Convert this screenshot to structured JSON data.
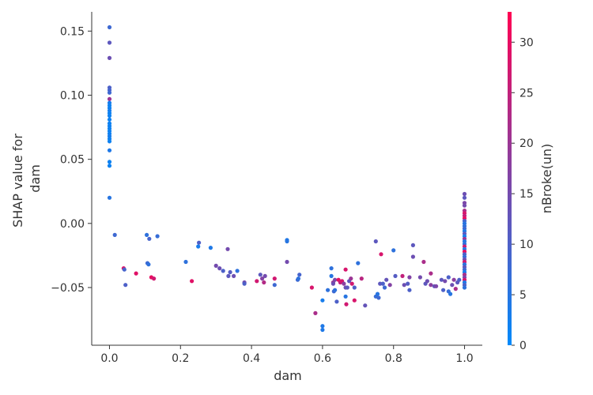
{
  "chart_data": {
    "type": "scatter",
    "title": "",
    "xlabel": "dam",
    "ylabel_lines": [
      "SHAP value for",
      "dam"
    ],
    "xlim": [
      -0.05,
      1.05
    ],
    "ylim": [
      -0.095,
      0.165
    ],
    "xticks": [
      0.0,
      0.2,
      0.4,
      0.6,
      0.8,
      1.0
    ],
    "xtick_labels": [
      "0.0",
      "0.2",
      "0.4",
      "0.6",
      "0.8",
      "1.0"
    ],
    "yticks": [
      0.15,
      0.1,
      0.05,
      0.0,
      -0.05
    ],
    "ytick_labels": [
      "0.15",
      "0.10",
      "0.05",
      "0.00",
      "−0.05"
    ],
    "grid": false,
    "colorbar": {
      "label": "nBroke(un)",
      "range": [
        0,
        33
      ],
      "ticks": [
        0,
        5,
        10,
        15,
        20,
        25,
        30
      ],
      "tick_labels": [
        "0",
        "5",
        "10",
        "15",
        "20",
        "25",
        "30"
      ],
      "colors": [
        "#008afb",
        "#ff0052"
      ]
    },
    "points": [
      [
        0.0,
        0.153,
        8
      ],
      [
        0.0,
        0.141,
        12
      ],
      [
        0.0,
        0.129,
        14
      ],
      [
        0.0,
        0.106,
        10
      ],
      [
        0.0,
        0.104,
        9
      ],
      [
        0.0,
        0.102,
        8
      ],
      [
        0.0,
        0.097,
        20
      ],
      [
        0.0,
        0.094,
        3
      ],
      [
        0.0,
        0.092,
        2
      ],
      [
        0.0,
        0.09,
        2
      ],
      [
        0.0,
        0.088,
        3
      ],
      [
        0.0,
        0.086,
        2
      ],
      [
        0.0,
        0.084,
        2
      ],
      [
        0.0,
        0.081,
        2
      ],
      [
        0.0,
        0.078,
        2
      ],
      [
        0.0,
        0.076,
        2
      ],
      [
        0.0,
        0.074,
        2
      ],
      [
        0.0,
        0.072,
        2
      ],
      [
        0.0,
        0.07,
        2
      ],
      [
        0.0,
        0.068,
        3
      ],
      [
        0.0,
        0.066,
        2
      ],
      [
        0.0,
        0.064,
        2
      ],
      [
        0.0,
        0.057,
        4
      ],
      [
        0.0,
        0.048,
        2
      ],
      [
        0.0,
        0.045,
        2
      ],
      [
        0.0,
        0.02,
        5
      ],
      [
        0.015,
        -0.009,
        8
      ],
      [
        0.04,
        -0.035,
        28
      ],
      [
        0.042,
        -0.036,
        9
      ],
      [
        0.045,
        -0.048,
        10
      ],
      [
        0.075,
        -0.039,
        29
      ],
      [
        0.105,
        -0.009,
        6
      ],
      [
        0.107,
        -0.031,
        8
      ],
      [
        0.11,
        -0.032,
        6
      ],
      [
        0.112,
        -0.012,
        9
      ],
      [
        0.118,
        -0.042,
        30
      ],
      [
        0.125,
        -0.043,
        27
      ],
      [
        0.135,
        -0.01,
        7
      ],
      [
        0.215,
        -0.03,
        6
      ],
      [
        0.232,
        -0.045,
        29
      ],
      [
        0.25,
        -0.018,
        3
      ],
      [
        0.252,
        -0.015,
        10
      ],
      [
        0.285,
        -0.019,
        4
      ],
      [
        0.3,
        -0.033,
        15
      ],
      [
        0.31,
        -0.035,
        14
      ],
      [
        0.32,
        -0.037,
        10
      ],
      [
        0.333,
        -0.02,
        15
      ],
      [
        0.335,
        -0.041,
        12
      ],
      [
        0.34,
        -0.038,
        11
      ],
      [
        0.35,
        -0.041,
        14
      ],
      [
        0.36,
        -0.037,
        6
      ],
      [
        0.38,
        -0.046,
        15
      ],
      [
        0.38,
        -0.047,
        10
      ],
      [
        0.415,
        -0.045,
        27
      ],
      [
        0.425,
        -0.04,
        12
      ],
      [
        0.43,
        -0.043,
        17
      ],
      [
        0.435,
        -0.046,
        23
      ],
      [
        0.438,
        -0.041,
        15
      ],
      [
        0.465,
        -0.048,
        8
      ],
      [
        0.465,
        -0.043,
        27
      ],
      [
        0.5,
        -0.013,
        4
      ],
      [
        0.5,
        -0.014,
        5
      ],
      [
        0.5,
        -0.03,
        15
      ],
      [
        0.53,
        -0.044,
        8
      ],
      [
        0.532,
        -0.043,
        6
      ],
      [
        0.535,
        -0.04,
        9
      ],
      [
        0.57,
        -0.05,
        28
      ],
      [
        0.58,
        -0.07,
        22
      ],
      [
        0.6,
        -0.06,
        3
      ],
      [
        0.6,
        -0.08,
        4
      ],
      [
        0.6,
        -0.083,
        4
      ],
      [
        0.615,
        -0.052,
        6
      ],
      [
        0.625,
        -0.035,
        6
      ],
      [
        0.625,
        -0.041,
        5
      ],
      [
        0.63,
        -0.046,
        20
      ],
      [
        0.63,
        -0.047,
        14
      ],
      [
        0.632,
        -0.053,
        8
      ],
      [
        0.635,
        -0.044,
        16
      ],
      [
        0.635,
        -0.052,
        6
      ],
      [
        0.64,
        -0.061,
        10
      ],
      [
        0.645,
        -0.044,
        30
      ],
      [
        0.65,
        -0.046,
        25
      ],
      [
        0.655,
        -0.045,
        28
      ],
      [
        0.66,
        -0.047,
        18
      ],
      [
        0.665,
        -0.05,
        14
      ],
      [
        0.665,
        -0.057,
        5
      ],
      [
        0.665,
        -0.036,
        28
      ],
      [
        0.667,
        -0.063,
        27
      ],
      [
        0.67,
        -0.05,
        12
      ],
      [
        0.675,
        -0.045,
        12
      ],
      [
        0.68,
        -0.043,
        20
      ],
      [
        0.683,
        -0.047,
        27
      ],
      [
        0.69,
        -0.06,
        28
      ],
      [
        0.69,
        -0.05,
        10
      ],
      [
        0.7,
        -0.031,
        6
      ],
      [
        0.71,
        -0.043,
        24
      ],
      [
        0.72,
        -0.064,
        13
      ],
      [
        0.75,
        -0.014,
        12
      ],
      [
        0.75,
        -0.057,
        7
      ],
      [
        0.755,
        -0.055,
        5
      ],
      [
        0.758,
        -0.058,
        8
      ],
      [
        0.762,
        -0.047,
        12
      ],
      [
        0.765,
        -0.024,
        28
      ],
      [
        0.77,
        -0.047,
        10
      ],
      [
        0.775,
        -0.05,
        8
      ],
      [
        0.78,
        -0.044,
        13
      ],
      [
        0.79,
        -0.048,
        17
      ],
      [
        0.8,
        -0.021,
        6
      ],
      [
        0.805,
        -0.041,
        11
      ],
      [
        0.825,
        -0.041,
        25
      ],
      [
        0.83,
        -0.048,
        14
      ],
      [
        0.84,
        -0.047,
        11
      ],
      [
        0.845,
        -0.042,
        17
      ],
      [
        0.845,
        -0.052,
        10
      ],
      [
        0.855,
        -0.017,
        12
      ],
      [
        0.855,
        -0.026,
        14
      ],
      [
        0.875,
        -0.042,
        15
      ],
      [
        0.885,
        -0.03,
        22
      ],
      [
        0.89,
        -0.047,
        12
      ],
      [
        0.895,
        -0.045,
        14
      ],
      [
        0.905,
        -0.039,
        22
      ],
      [
        0.905,
        -0.048,
        18
      ],
      [
        0.915,
        -0.049,
        13
      ],
      [
        0.92,
        -0.049,
        16
      ],
      [
        0.935,
        -0.044,
        12
      ],
      [
        0.94,
        -0.052,
        10
      ],
      [
        0.945,
        -0.045,
        15
      ],
      [
        0.955,
        -0.053,
        7
      ],
      [
        0.955,
        -0.042,
        10
      ],
      [
        0.96,
        -0.055,
        5
      ],
      [
        0.965,
        -0.048,
        14
      ],
      [
        0.97,
        -0.044,
        18
      ],
      [
        0.975,
        -0.051,
        22
      ],
      [
        0.98,
        -0.046,
        12
      ],
      [
        0.985,
        -0.044,
        10
      ],
      [
        1.0,
        0.023,
        14
      ],
      [
        1.0,
        0.02,
        12
      ],
      [
        1.0,
        0.016,
        16
      ],
      [
        1.0,
        0.014,
        15
      ],
      [
        1.0,
        0.01,
        22
      ],
      [
        1.0,
        0.008,
        28
      ],
      [
        1.0,
        0.006,
        25
      ],
      [
        1.0,
        0.004,
        30
      ],
      [
        1.0,
        0.002,
        9
      ],
      [
        1.0,
        0.0,
        5
      ],
      [
        1.0,
        -0.002,
        6
      ],
      [
        1.0,
        -0.004,
        8
      ],
      [
        1.0,
        -0.006,
        4
      ],
      [
        1.0,
        -0.008,
        12
      ],
      [
        1.0,
        -0.01,
        3
      ],
      [
        1.0,
        -0.012,
        20
      ],
      [
        1.0,
        -0.014,
        5
      ],
      [
        1.0,
        -0.016,
        6
      ],
      [
        1.0,
        -0.018,
        26
      ],
      [
        1.0,
        -0.02,
        4
      ],
      [
        1.0,
        -0.022,
        30
      ],
      [
        1.0,
        -0.024,
        10
      ],
      [
        1.0,
        -0.026,
        7
      ],
      [
        1.0,
        -0.028,
        14
      ],
      [
        1.0,
        -0.03,
        27
      ],
      [
        1.0,
        -0.032,
        5
      ],
      [
        1.0,
        -0.034,
        12
      ],
      [
        1.0,
        -0.036,
        8
      ],
      [
        1.0,
        -0.038,
        3
      ],
      [
        1.0,
        -0.04,
        22
      ],
      [
        1.0,
        -0.042,
        16
      ],
      [
        1.0,
        -0.044,
        28
      ],
      [
        1.0,
        -0.046,
        4
      ],
      [
        1.0,
        -0.048,
        10
      ],
      [
        1.0,
        -0.05,
        6
      ]
    ]
  }
}
